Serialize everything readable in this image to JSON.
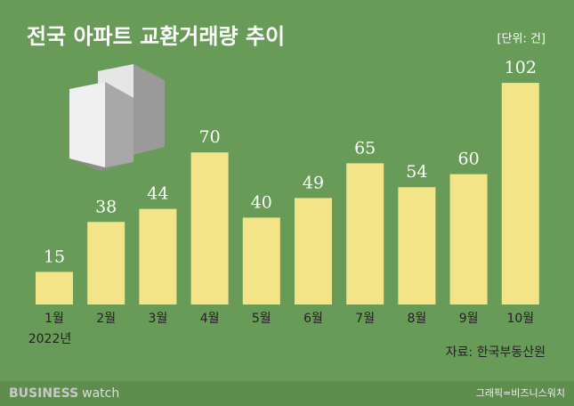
{
  "chart_data": {
    "type": "bar",
    "title": "전국 아파트 교환거래량 추이",
    "unit": "[단위: 건]",
    "categories": [
      "1월",
      "2월",
      "3월",
      "4월",
      "5월",
      "6월",
      "7월",
      "8월",
      "9월",
      "10월"
    ],
    "values": [
      15,
      38,
      44,
      70,
      40,
      49,
      65,
      54,
      60,
      102
    ],
    "color": "#f4e488",
    "x_note": "2022년",
    "source": "자료: 한국부동산원"
  },
  "footer": {
    "brand": "BUSINESS",
    "brand_sub": "watch",
    "credit": "그래픽=비즈니스워치"
  }
}
